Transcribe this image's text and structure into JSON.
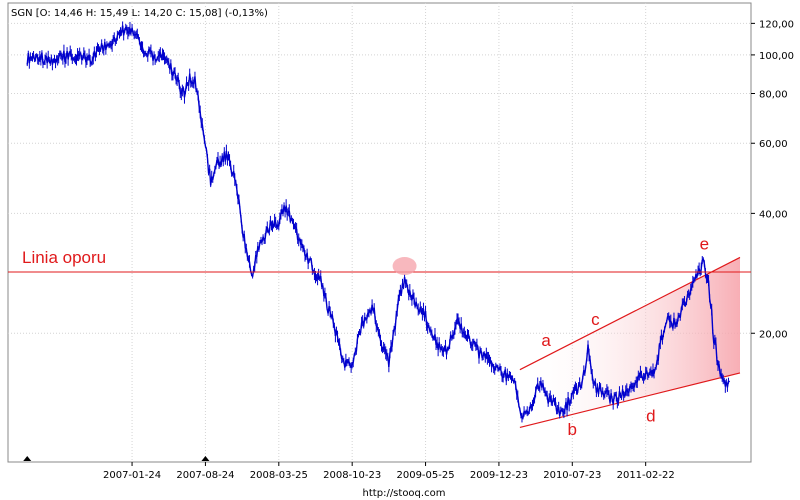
{
  "chart_data": {
    "type": "line",
    "ticker_label": "SGN [O: 14,46  H: 15,49  L: 14,20  C: 15,08] (-0,13%)",
    "source": "http://stooq.com",
    "colors": {
      "price": "#0000cc",
      "annotation": "#e0191b",
      "channel_fill": "#f6a0a8",
      "grid": "#d4d4d4"
    },
    "y_scale": "log",
    "ylim": [
      9.5,
      135
    ],
    "x_ticks": [
      "2007-01-24",
      "2007-08-24",
      "2008-03-25",
      "2008-10-23",
      "2009-05-25",
      "2009-12-23",
      "2010-07-23",
      "2011-02-22"
    ],
    "y_ticks": [
      {
        "value": 20,
        "label": "20,00"
      },
      {
        "value": 40,
        "label": "40,00"
      },
      {
        "value": 60,
        "label": "60,00"
      },
      {
        "value": 80,
        "label": "80,00"
      },
      {
        "value": 100,
        "label": "100,00"
      },
      {
        "value": 120,
        "label": "120,00"
      }
    ],
    "x_range_months": [
      -10.5,
      58
    ],
    "series": [
      {
        "type": "price",
        "points": [
          [
            -10.0,
            98
          ],
          [
            -9.0,
            100
          ],
          [
            -8.0,
            96
          ],
          [
            -7.0,
            98
          ],
          [
            -6.0,
            100
          ],
          [
            -5.0,
            99
          ],
          [
            -4.0,
            97
          ],
          [
            -3.0,
            103
          ],
          [
            -2.0,
            108
          ],
          [
            -1.0,
            115
          ],
          [
            0.0,
            117
          ],
          [
            0.5,
            112
          ],
          [
            1.0,
            101
          ],
          [
            2.0,
            99
          ],
          [
            3.0,
            100
          ],
          [
            4.0,
            90
          ],
          [
            5.0,
            79
          ],
          [
            5.5,
            88
          ],
          [
            6.0,
            87
          ],
          [
            6.5,
            72
          ],
          [
            7.0,
            59
          ],
          [
            7.5,
            48
          ],
          [
            8.0,
            53
          ],
          [
            9.0,
            56
          ],
          [
            10.0,
            47
          ],
          [
            10.5,
            36
          ],
          [
            11.0,
            32
          ],
          [
            11.5,
            28
          ],
          [
            12.0,
            33
          ],
          [
            13.0,
            37
          ],
          [
            14.0,
            38
          ],
          [
            14.5,
            42
          ],
          [
            15.0,
            40
          ],
          [
            16.0,
            34
          ],
          [
            17.0,
            30
          ],
          [
            18.0,
            27
          ],
          [
            18.5,
            24
          ],
          [
            19.0,
            22
          ],
          [
            19.5,
            20
          ],
          [
            20.0,
            17.5
          ],
          [
            20.5,
            16.5
          ],
          [
            21.0,
            17
          ],
          [
            21.5,
            19
          ],
          [
            22.0,
            21
          ],
          [
            23.0,
            23
          ],
          [
            24.0,
            18
          ],
          [
            24.5,
            17
          ],
          [
            25.0,
            20
          ],
          [
            25.5,
            25
          ],
          [
            26.0,
            27
          ],
          [
            27.0,
            24
          ],
          [
            28.0,
            22
          ],
          [
            29.0,
            19
          ],
          [
            30.0,
            18
          ],
          [
            31.0,
            21.5
          ],
          [
            32.0,
            19.5
          ],
          [
            33.0,
            18
          ],
          [
            34.0,
            17
          ],
          [
            35.0,
            16
          ],
          [
            36.0,
            15.5
          ],
          [
            36.5,
            14.8
          ],
          [
            37.0,
            13
          ],
          [
            37.5,
            12.3
          ],
          [
            38.0,
            13.3
          ],
          [
            39.0,
            15
          ],
          [
            39.5,
            14
          ],
          [
            40.0,
            13.5
          ],
          [
            41.0,
            12.5
          ],
          [
            42.0,
            14
          ],
          [
            43.0,
            15
          ],
          [
            43.5,
            18.5
          ],
          [
            44.0,
            15
          ],
          [
            45.0,
            14
          ],
          [
            46.0,
            13.7
          ],
          [
            47.0,
            14.2
          ],
          [
            47.5,
            14.8
          ],
          [
            48.0,
            15.2
          ],
          [
            49.0,
            15.8
          ],
          [
            50.0,
            16.5
          ],
          [
            50.5,
            19.5
          ],
          [
            51.0,
            21.5
          ],
          [
            52.0,
            21
          ],
          [
            53.0,
            25
          ],
          [
            54.0,
            28
          ],
          [
            54.5,
            30
          ],
          [
            55.0,
            27
          ],
          [
            55.5,
            19.5
          ],
          [
            56.0,
            16.5
          ],
          [
            56.5,
            15
          ],
          [
            57.0,
            15.08
          ]
        ]
      }
    ],
    "support_line": {
      "label": "Linia oporu",
      "value": 28.5,
      "marker": {
        "x": 26.0,
        "y": 29.5
      }
    },
    "channel": {
      "upper": [
        [
          37.0,
          16.2
        ],
        [
          58.0,
          31.0
        ]
      ],
      "lower": [
        [
          37.0,
          11.6
        ],
        [
          58.0,
          15.9
        ]
      ]
    },
    "annotations": [
      {
        "label": "a",
        "x": 39.5,
        "y": 18.6
      },
      {
        "label": "b",
        "x": 42.0,
        "y": 11.1
      },
      {
        "label": "c",
        "x": 44.2,
        "y": 21.0
      },
      {
        "label": "d",
        "x": 49.5,
        "y": 12.0
      },
      {
        "label": "e",
        "x": 54.6,
        "y": 32.5
      }
    ],
    "arrow_markers": [
      -10.0,
      7.0
    ],
    "grid": true
  }
}
